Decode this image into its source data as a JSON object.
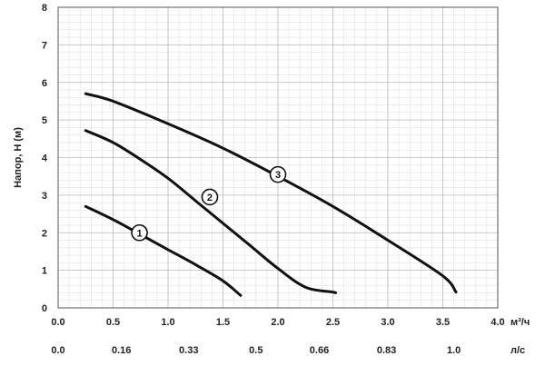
{
  "chart_data": {
    "type": "line",
    "ylabel": "Напор, H (м)",
    "x_unit": "м³/ч",
    "x2_unit": "л/с",
    "xlim": [
      0,
      4
    ],
    "ylim": [
      0,
      8
    ],
    "x_ticks": [
      "0.0",
      "0.5",
      "1.0",
      "1.5",
      "2.0",
      "2.5",
      "3.0",
      "3.5",
      "4.0"
    ],
    "y_ticks": [
      "0",
      "1",
      "2",
      "3",
      "4",
      "5",
      "6",
      "7",
      "8"
    ],
    "x2_ticks": [
      {
        "value": 0.0,
        "label": "0.0"
      },
      {
        "value": 0.576,
        "label": "0.16"
      },
      {
        "value": 1.188,
        "label": "0.33"
      },
      {
        "value": 1.8,
        "label": "0.5"
      },
      {
        "value": 2.376,
        "label": "0.66"
      },
      {
        "value": 2.988,
        "label": "0.83"
      },
      {
        "value": 3.6,
        "label": "1.0"
      }
    ],
    "grid": true,
    "series": [
      {
        "name": "1",
        "label_at": {
          "x": 0.74,
          "y": 2.0
        },
        "x": [
          0.25,
          0.5,
          0.75,
          1.0,
          1.25,
          1.5,
          1.66
        ],
        "y": [
          2.7,
          2.35,
          1.95,
          1.55,
          1.15,
          0.72,
          0.33
        ]
      },
      {
        "name": "2",
        "label_at": {
          "x": 1.38,
          "y": 2.95
        },
        "x": [
          0.25,
          0.5,
          0.75,
          1.0,
          1.25,
          1.5,
          1.75,
          2.0,
          2.25,
          2.5,
          2.52
        ],
        "y": [
          4.72,
          4.4,
          3.95,
          3.45,
          2.85,
          2.25,
          1.65,
          1.05,
          0.55,
          0.42,
          0.4
        ]
      },
      {
        "name": "3",
        "label_at": {
          "x": 2.0,
          "y": 3.55
        },
        "x": [
          0.25,
          0.5,
          1.0,
          1.5,
          2.0,
          2.5,
          3.0,
          3.5,
          3.62
        ],
        "y": [
          5.7,
          5.5,
          4.9,
          4.25,
          3.5,
          2.7,
          1.8,
          0.85,
          0.42
        ]
      }
    ]
  }
}
